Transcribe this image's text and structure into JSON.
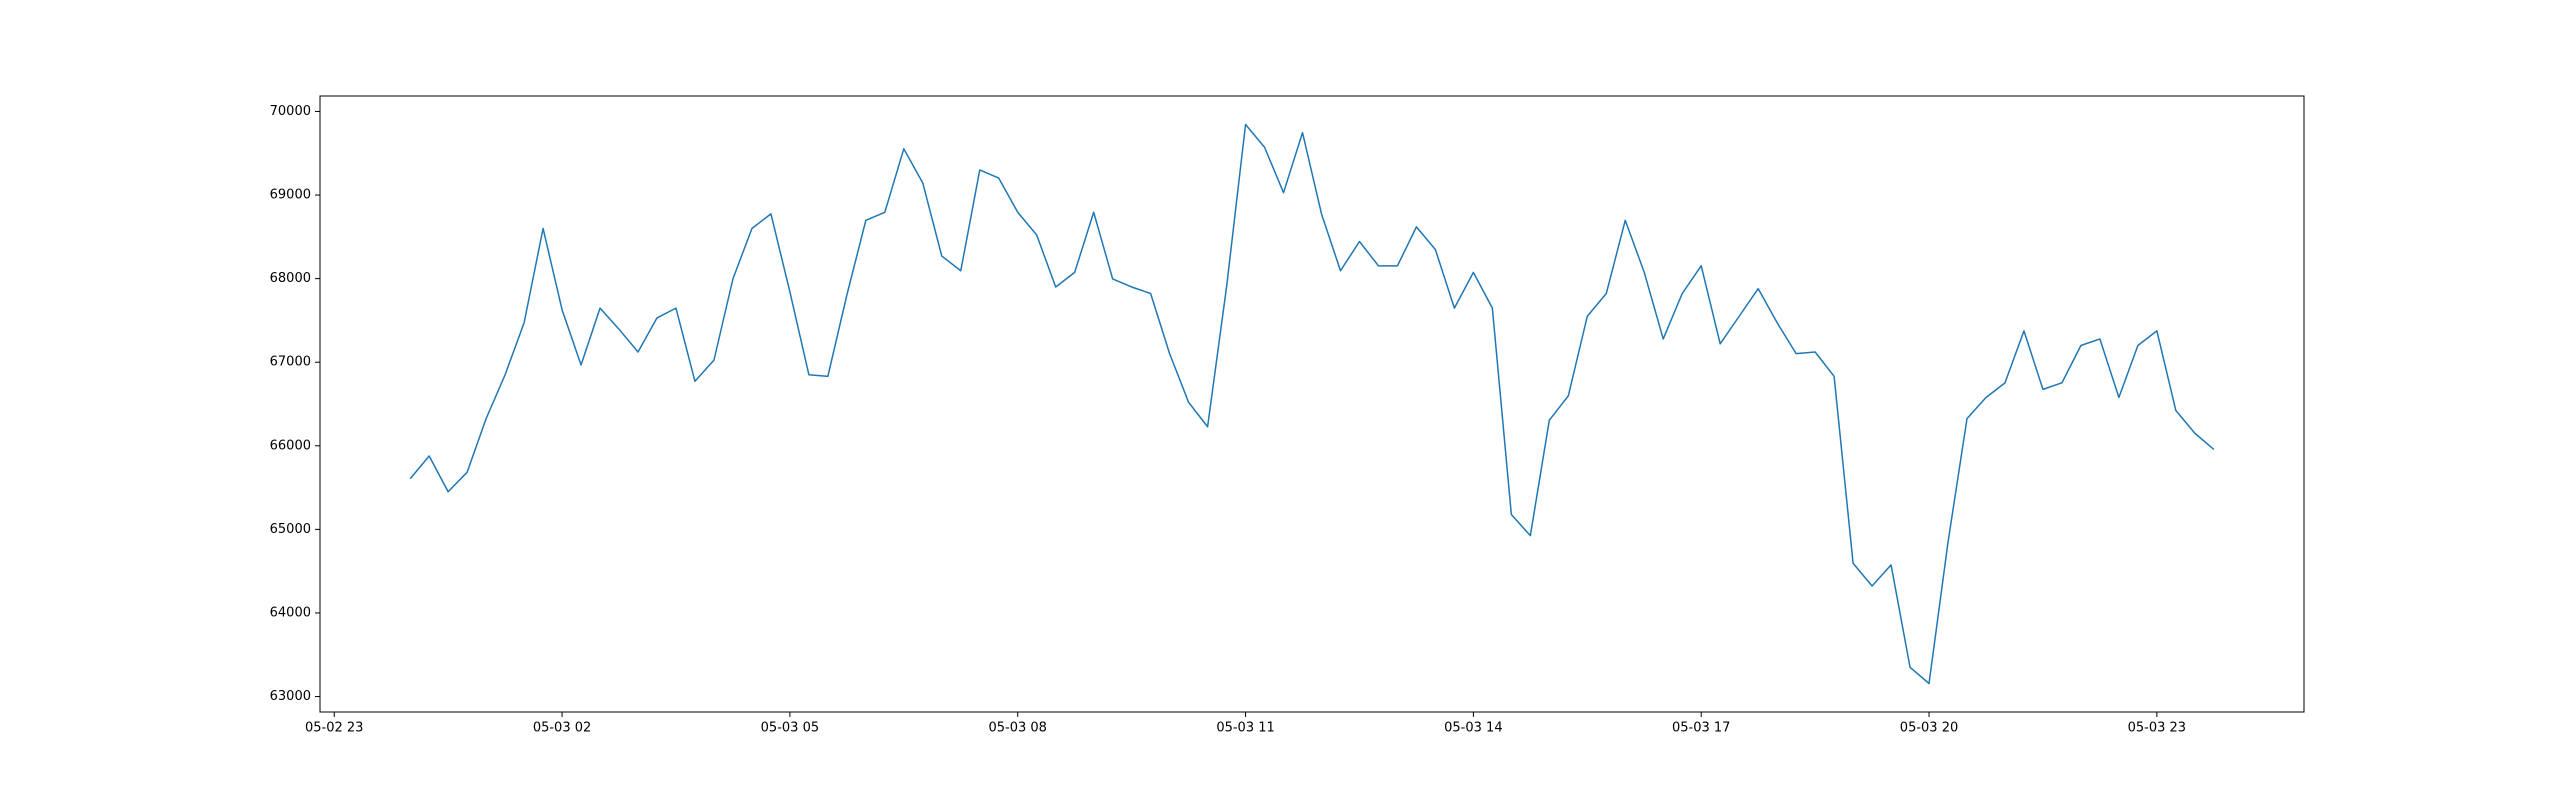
{
  "chart_data": {
    "type": "line",
    "x": [
      0,
      0.25,
      0.5,
      0.75,
      1,
      1.25,
      1.5,
      1.75,
      2,
      2.25,
      2.5,
      2.75,
      3,
      3.25,
      3.5,
      3.75,
      4,
      4.25,
      4.5,
      4.75,
      5,
      5.25,
      5.5,
      5.75,
      6,
      6.25,
      6.5,
      6.75,
      7,
      7.25,
      7.5,
      7.75,
      8,
      8.25,
      8.5,
      8.75,
      9,
      9.25,
      9.5,
      9.75,
      10,
      10.25,
      10.5,
      10.75,
      11,
      11.25,
      11.5,
      11.75,
      12,
      12.25,
      12.5,
      12.75,
      13,
      13.25,
      13.5,
      13.75,
      14,
      14.25,
      14.5,
      14.75,
      15,
      15.25,
      15.5,
      15.75,
      16,
      16.25,
      16.5,
      16.75,
      17,
      17.25,
      17.5,
      17.75,
      18,
      18.25,
      18.5,
      18.75,
      19,
      19.25,
      19.5,
      19.75,
      20,
      20.25,
      20.5,
      20.75,
      21,
      21.25,
      21.5,
      21.75,
      22,
      22.25,
      22.5,
      22.75,
      23,
      23.25,
      23.5,
      23.75
    ],
    "series": [
      {
        "color": "#1f77b4",
        "values": [
          65606,
          65878,
          65450,
          65684,
          66325,
          66850,
          67472,
          68600,
          67628,
          66967,
          67647,
          67395,
          67122,
          67530,
          67647,
          66772,
          67025,
          67997,
          68600,
          68775,
          67842,
          66850,
          66831,
          67803,
          68697,
          68794,
          69553,
          69144,
          68270,
          68094,
          69300,
          69203,
          68794,
          68522,
          67900,
          68075,
          68794,
          67997,
          67900,
          67822,
          67103,
          66520,
          66228,
          67900,
          69844,
          69572,
          69028,
          69747,
          68775,
          68094,
          68444,
          68153,
          68153,
          68619,
          68347,
          67647,
          68075,
          67647,
          65178,
          64925,
          66306,
          66597,
          67550,
          67822,
          68697,
          68075,
          67278,
          67822,
          68153,
          67220,
          67550,
          67880,
          67472,
          67103,
          67122,
          66831,
          64595,
          64322,
          64575,
          63350,
          63156,
          64847,
          66325,
          66578,
          66753,
          67375,
          66675,
          66753,
          67200,
          67278,
          66578,
          67200,
          67375,
          66422,
          66150,
          65956
        ]
      }
    ],
    "xlim": [
      -1.1875,
      24.9375
    ],
    "xticks": [
      {
        "value": -1,
        "label": "05-02 23"
      },
      {
        "value": 2,
        "label": "05-03 02"
      },
      {
        "value": 5,
        "label": "05-03 05"
      },
      {
        "value": 8,
        "label": "05-03 08"
      },
      {
        "value": 11,
        "label": "05-03 11"
      },
      {
        "value": 14,
        "label": "05-03 14"
      },
      {
        "value": 17,
        "label": "05-03 17"
      },
      {
        "value": 20,
        "label": "05-03 20"
      },
      {
        "value": 23,
        "label": "05-03 23"
      }
    ],
    "ylim": [
      62815,
      70185
    ],
    "yticks": [
      63000,
      64000,
      65000,
      66000,
      67000,
      68000,
      69000,
      70000
    ],
    "grid": false
  }
}
